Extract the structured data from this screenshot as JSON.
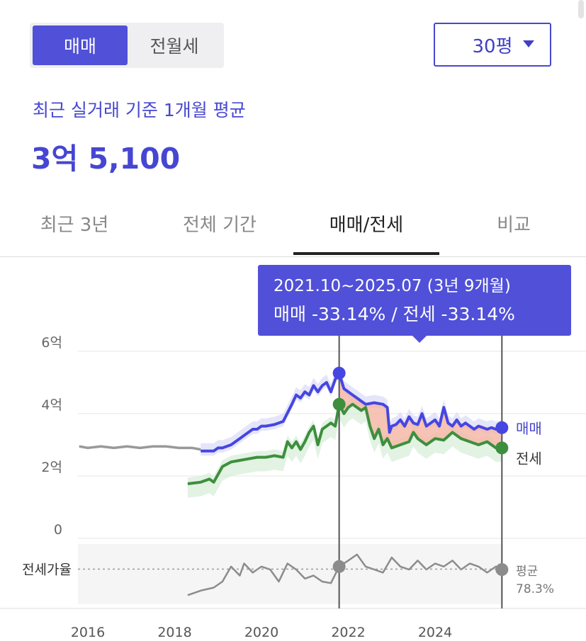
{
  "trade_toggle": {
    "sale_label": "매매",
    "rent_label": "전월세",
    "selected": "매매"
  },
  "size_select": {
    "value": "30평"
  },
  "summary": {
    "caption": "최근 실거래 기준 1개월 평균",
    "price": "3억 5,100"
  },
  "tabs": [
    {
      "label": "최근 3년"
    },
    {
      "label": "전체 기간"
    },
    {
      "label": "매매/전세",
      "active": true
    },
    {
      "label": "비교"
    }
  ],
  "tooltip": {
    "line1": "2021.10~2025.07 (3년 9개월)",
    "line2": "매매 -33.14%  /  전세 -33.14%"
  },
  "colors": {
    "accent": "#5050d8",
    "sale": "#4646e0",
    "jeonse": "#3d8f3d",
    "gap_fill": "#f5b8a8",
    "ratio": "#8c8c8c",
    "history": "#999999"
  },
  "chart_data": {
    "type": "line",
    "x_ticks": [
      "2016",
      "2018",
      "2020",
      "2022",
      "2024"
    ],
    "xlim": [
      2015.8,
      2026.6
    ],
    "y_ticks": [
      "0",
      "2억",
      "4억",
      "6억"
    ],
    "ylim": [
      0,
      6
    ],
    "y_unit": "억",
    "grid": true,
    "ratio_label": "전세가율",
    "ratio_average": {
      "label": "평균",
      "value": "78.3%"
    },
    "range": {
      "start": 2021.79,
      "end": 2025.54
    },
    "series": [
      {
        "name": "매매",
        "end_label": "매매",
        "x": [
          2018.6,
          2018.9,
          2019.0,
          2019.1,
          2019.3,
          2019.5,
          2019.6,
          2019.7,
          2019.8,
          2019.9,
          2020.0,
          2020.1,
          2020.3,
          2020.5,
          2020.7,
          2020.8,
          2020.9,
          2021.0,
          2021.1,
          2021.2,
          2021.3,
          2021.4,
          2021.5,
          2021.6,
          2021.7,
          2021.79,
          2021.9,
          2022.1,
          2022.2,
          2022.4,
          2022.6,
          2022.8,
          2022.9,
          2022.95,
          2023.0,
          2023.1,
          2023.2,
          2023.3,
          2023.4,
          2023.5,
          2023.6,
          2023.7,
          2023.8,
          2023.9,
          2024.0,
          2024.1,
          2024.2,
          2024.3,
          2024.4,
          2024.5,
          2024.6,
          2024.7,
          2024.8,
          2024.9,
          2025.0,
          2025.1,
          2025.2,
          2025.3,
          2025.4,
          2025.54
        ],
        "y": [
          2.8,
          2.8,
          2.9,
          2.9,
          3.0,
          3.2,
          3.3,
          3.4,
          3.5,
          3.5,
          3.6,
          3.6,
          3.65,
          3.75,
          4.3,
          4.6,
          4.5,
          4.7,
          4.6,
          4.9,
          4.7,
          4.9,
          5.0,
          4.7,
          5.1,
          5.3,
          4.8,
          4.6,
          4.5,
          4.3,
          4.35,
          4.3,
          4.2,
          3.4,
          3.6,
          3.65,
          3.8,
          3.6,
          3.9,
          3.7,
          3.65,
          4.0,
          3.6,
          3.7,
          3.8,
          3.6,
          4.2,
          3.7,
          3.6,
          3.8,
          3.6,
          3.7,
          3.6,
          3.5,
          3.6,
          3.55,
          3.5,
          3.55,
          3.5,
          3.55
        ]
      },
      {
        "name": "전세",
        "end_label": "전세",
        "x": [
          2018.3,
          2018.6,
          2018.8,
          2018.9,
          2019.1,
          2019.3,
          2019.5,
          2019.7,
          2019.9,
          2020.1,
          2020.3,
          2020.5,
          2020.6,
          2020.7,
          2020.8,
          2020.9,
          2021.0,
          2021.1,
          2021.2,
          2021.3,
          2021.4,
          2021.5,
          2021.6,
          2021.7,
          2021.79,
          2021.9,
          2022.0,
          2022.1,
          2022.3,
          2022.4,
          2022.5,
          2022.6,
          2022.7,
          2022.8,
          2022.9,
          2023.0,
          2023.2,
          2023.4,
          2023.5,
          2023.6,
          2023.7,
          2023.8,
          2024.0,
          2024.2,
          2024.4,
          2024.6,
          2024.8,
          2025.0,
          2025.2,
          2025.4,
          2025.54
        ],
        "y": [
          1.75,
          1.8,
          1.9,
          1.8,
          2.3,
          2.45,
          2.5,
          2.55,
          2.6,
          2.6,
          2.65,
          2.6,
          3.1,
          2.9,
          3.1,
          2.85,
          3.1,
          3.4,
          3.6,
          3.0,
          3.5,
          3.6,
          3.7,
          3.6,
          4.3,
          4.0,
          4.2,
          4.3,
          4.1,
          4.2,
          3.6,
          3.2,
          3.5,
          3.0,
          3.2,
          2.9,
          3.0,
          3.1,
          3.4,
          3.2,
          3.1,
          3.0,
          3.2,
          3.15,
          3.4,
          3.2,
          3.1,
          3.0,
          3.1,
          2.9,
          2.9
        ]
      },
      {
        "name": "",
        "style": "history",
        "x": [
          2015.8,
          2016.0,
          2016.3,
          2016.6,
          2016.9,
          2017.2,
          2017.5,
          2017.8,
          2018.1,
          2018.4,
          2018.6
        ],
        "y": [
          2.95,
          2.9,
          2.95,
          2.9,
          2.95,
          2.9,
          2.95,
          2.95,
          2.9,
          2.9,
          2.85
        ]
      }
    ],
    "ratio_series": {
      "x": [
        2018.3,
        2018.6,
        2018.9,
        2019.1,
        2019.3,
        2019.5,
        2019.6,
        2019.8,
        2020.0,
        2020.2,
        2020.4,
        2020.6,
        2020.8,
        2021.0,
        2021.2,
        2021.4,
        2021.6,
        2021.79,
        2022.0,
        2022.2,
        2022.4,
        2022.6,
        2022.8,
        2023.0,
        2023.2,
        2023.4,
        2023.6,
        2023.8,
        2024.0,
        2024.2,
        2024.4,
        2024.6,
        2024.8,
        2025.0,
        2025.2,
        2025.4,
        2025.54
      ],
      "y": [
        61,
        64,
        66,
        70,
        80,
        74,
        82,
        76,
        80,
        78,
        70,
        82,
        78,
        72,
        74,
        70,
        69,
        80,
        84,
        88,
        80,
        78,
        76,
        86,
        80,
        78,
        84,
        78,
        82,
        80,
        84,
        78,
        82,
        80,
        76,
        80,
        78
      ],
      "ylim": [
        55,
        95
      ]
    }
  }
}
